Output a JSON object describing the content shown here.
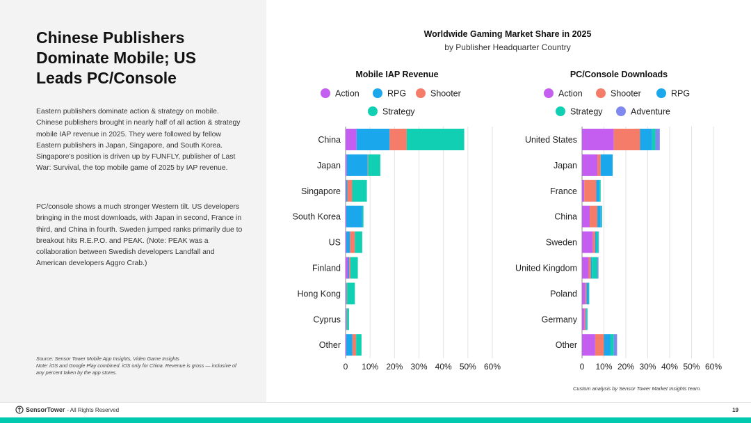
{
  "left": {
    "headline": "Chinese Publishers Dominate Mobile; US Leads PC/Console",
    "paragraph1": "Eastern publishers dominate action & strategy on mobile. Chinese publishers brought in nearly half of all action & strategy mobile IAP revenue in 2025. They were followed by fellow Eastern publishers in Japan, Singapore, and South Korea. Singapore's position is driven up by FUNFLY, publisher of Last War: Survival, the top mobile game of 2025 by IAP revenue.",
    "paragraph2": "PC/console shows a much stronger Western tilt. US developers bringing in the most downloads, with Japan in second, France in third, and China in fourth. Sweden jumped ranks primarily due to breakout hits R.E.P.O. and PEAK. (Note: PEAK was a collaboration between Swedish developers Landfall and American developers Aggro Crab.)",
    "source_line1": "Source: Sensor Tower Mobile App Insights, Video Game Insights",
    "source_line2": "Note: iOS and Google Play combined. iOS only for China. Revenue is gross — inclusive of any percent taken by the app stores."
  },
  "figure": {
    "title": "Worldwide Gaming Market Share in 2025",
    "subtitle": "by Publisher Headquarter Country",
    "note": "Custom analysis by Sensor Tower Market Insights team."
  },
  "footer": {
    "brand": "SensorTower",
    "rights": "- All Rights Reserved",
    "page_number": "19"
  },
  "colors": {
    "action": "#c45ef0",
    "rpg": "#1aa7ec",
    "shooter": "#f47c68",
    "strategy": "#10cfb3",
    "adventure": "#7f88ee",
    "teal_accent": "#00c9b0"
  },
  "chart_data": [
    {
      "type": "bar",
      "orientation": "horizontal",
      "stacked": true,
      "title": "Mobile IAP Revenue",
      "categories": [
        "China",
        "Japan",
        "Singapore",
        "South Korea",
        "US",
        "Finland",
        "Hong Kong",
        "Cyprus",
        "Other"
      ],
      "series": [
        {
          "name": "Action",
          "color": "#c45ef0",
          "values": [
            4.5,
            0.5,
            0.2,
            0.3,
            0.3,
            1.0,
            0.2,
            0.2,
            0.3
          ]
        },
        {
          "name": "RPG",
          "color": "#1aa7ec",
          "values": [
            13.5,
            8.5,
            0.5,
            6.5,
            1.5,
            0.5,
            0.2,
            0.2,
            2.5
          ]
        },
        {
          "name": "Shooter",
          "color": "#f47c68",
          "values": [
            7.0,
            0.2,
            2.0,
            0.0,
            2.0,
            0.5,
            0.2,
            0.2,
            1.5
          ]
        },
        {
          "name": "Strategy",
          "color": "#10cfb3",
          "values": [
            23.5,
            5.0,
            6.0,
            0.5,
            3.0,
            3.0,
            3.2,
            0.8,
            2.2
          ]
        }
      ],
      "xticks": [
        "0",
        "10%",
        "20%",
        "30%",
        "40%",
        "50%",
        "60%"
      ],
      "xlim": [
        0,
        60
      ],
      "grid": true,
      "legend_position": "top"
    },
    {
      "type": "bar",
      "orientation": "horizontal",
      "stacked": true,
      "title": "PC/Console Downloads",
      "categories": [
        "United States",
        "Japan",
        "France",
        "China",
        "Sweden",
        "United Kingdom",
        "Poland",
        "Germany",
        "Other"
      ],
      "series": [
        {
          "name": "Action",
          "color": "#c45ef0",
          "values": [
            14.5,
            7.0,
            1.0,
            3.5,
            5.0,
            3.0,
            1.5,
            1.2,
            6.0
          ]
        },
        {
          "name": "Shooter",
          "color": "#f47c68",
          "values": [
            12.0,
            1.5,
            5.5,
            3.5,
            1.0,
            1.0,
            0.5,
            0.5,
            4.0
          ]
        },
        {
          "name": "RPG",
          "color": "#1aa7ec",
          "values": [
            5.5,
            5.5,
            1.5,
            1.5,
            0.5,
            0.5,
            1.0,
            0.3,
            3.0
          ]
        },
        {
          "name": "Strategy",
          "color": "#10cfb3",
          "values": [
            1.5,
            0.0,
            0.5,
            0.5,
            1.0,
            2.5,
            0.3,
            0.5,
            1.5
          ]
        },
        {
          "name": "Adventure",
          "color": "#7f88ee",
          "values": [
            2.0,
            0.0,
            0.0,
            0.2,
            0.2,
            0.5,
            0.0,
            0.0,
            1.5
          ]
        }
      ],
      "xticks": [
        "0",
        "10%",
        "20%",
        "30%",
        "40%",
        "50%",
        "60%"
      ],
      "xlim": [
        0,
        60
      ],
      "grid": true,
      "legend_position": "top"
    }
  ]
}
